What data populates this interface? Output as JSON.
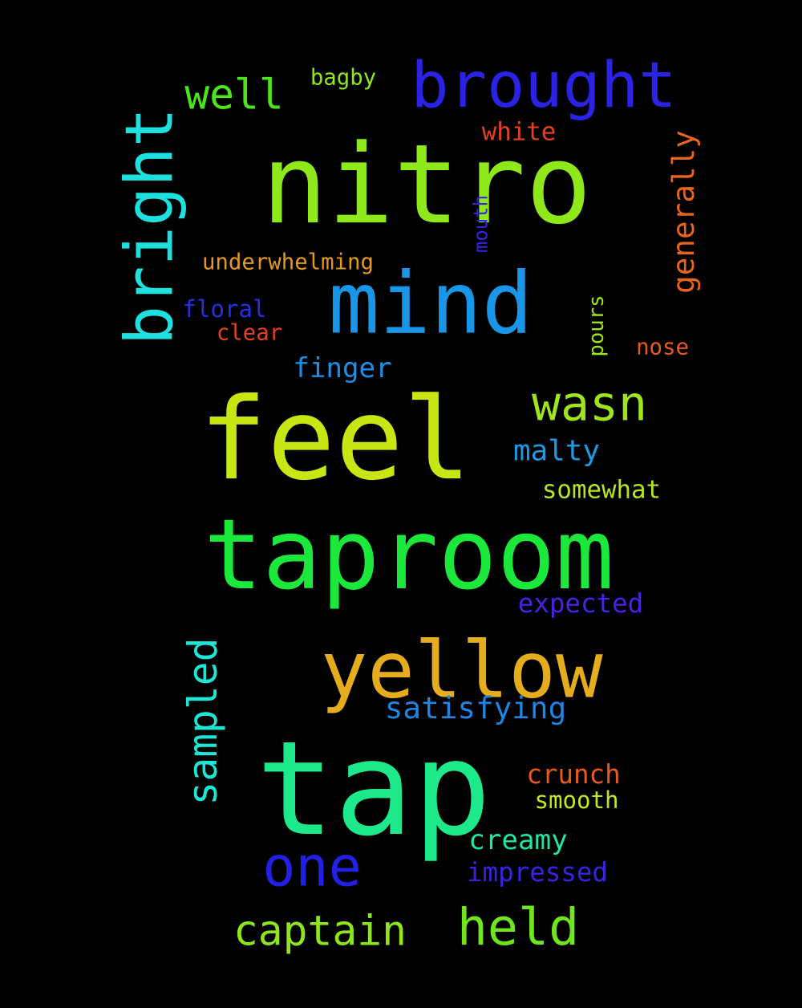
{
  "background": "#000000",
  "words": [
    {
      "text": "nitro",
      "color": "#8fe81a",
      "orientation": "horizontal"
    },
    {
      "text": "feel",
      "color": "#c8e514",
      "orientation": "horizontal"
    },
    {
      "text": "tap",
      "color": "#1de98b",
      "orientation": "horizontal"
    },
    {
      "text": "mind",
      "color": "#1996e8",
      "orientation": "horizontal"
    },
    {
      "text": "taproom",
      "color": "#1ce83c",
      "orientation": "horizontal"
    },
    {
      "text": "yellow",
      "color": "#e5ac1e",
      "orientation": "horizontal"
    },
    {
      "text": "one",
      "color": "#2320e6",
      "orientation": "horizontal"
    },
    {
      "text": "brought",
      "color": "#2a22e4",
      "orientation": "horizontal"
    },
    {
      "text": "held",
      "color": "#6fe61c",
      "orientation": "horizontal"
    },
    {
      "text": "wasn",
      "color": "#9fe51c",
      "orientation": "horizontal"
    },
    {
      "text": "bright",
      "color": "#1ee0df",
      "orientation": "vertical"
    },
    {
      "text": "captain",
      "color": "#8ee51c",
      "orientation": "horizontal"
    },
    {
      "text": "well",
      "color": "#4ce51c",
      "orientation": "horizontal"
    },
    {
      "text": "sampled",
      "color": "#1ee6d6",
      "orientation": "vertical"
    },
    {
      "text": "satisfying",
      "color": "#1f84e3",
      "orientation": "horizontal"
    },
    {
      "text": "finger",
      "color": "#1c8fe6",
      "orientation": "horizontal"
    },
    {
      "text": "malty",
      "color": "#1d9ae6",
      "orientation": "horizontal"
    },
    {
      "text": "expected",
      "color": "#4a22e4",
      "orientation": "horizontal"
    },
    {
      "text": "creamy",
      "color": "#1de8a3",
      "orientation": "horizontal"
    },
    {
      "text": "crunch",
      "color": "#e55a1e",
      "orientation": "horizontal"
    },
    {
      "text": "generally",
      "color": "#e5651e",
      "orientation": "vertical"
    },
    {
      "text": "impressed",
      "color": "#3a22e0",
      "orientation": "horizontal"
    },
    {
      "text": "white",
      "color": "#e5401e",
      "orientation": "horizontal"
    },
    {
      "text": "somewhat",
      "color": "#b8e61c",
      "orientation": "horizontal"
    },
    {
      "text": "underwhelming",
      "color": "#e59a1e",
      "orientation": "horizontal"
    },
    {
      "text": "floral",
      "color": "#2230e4",
      "orientation": "horizontal"
    },
    {
      "text": "pours",
      "color": "#9de61c",
      "orientation": "vertical"
    },
    {
      "text": "bagby",
      "color": "#8ee81c",
      "orientation": "horizontal"
    },
    {
      "text": "mouth",
      "color": "#3a22e6",
      "orientation": "vertical"
    },
    {
      "text": "nose",
      "color": "#e55a1e",
      "orientation": "horizontal"
    },
    {
      "text": "clear",
      "color": "#e5401e",
      "orientation": "horizontal"
    },
    {
      "text": "smooth",
      "color": "#c8e61c",
      "orientation": "horizontal"
    }
  ]
}
